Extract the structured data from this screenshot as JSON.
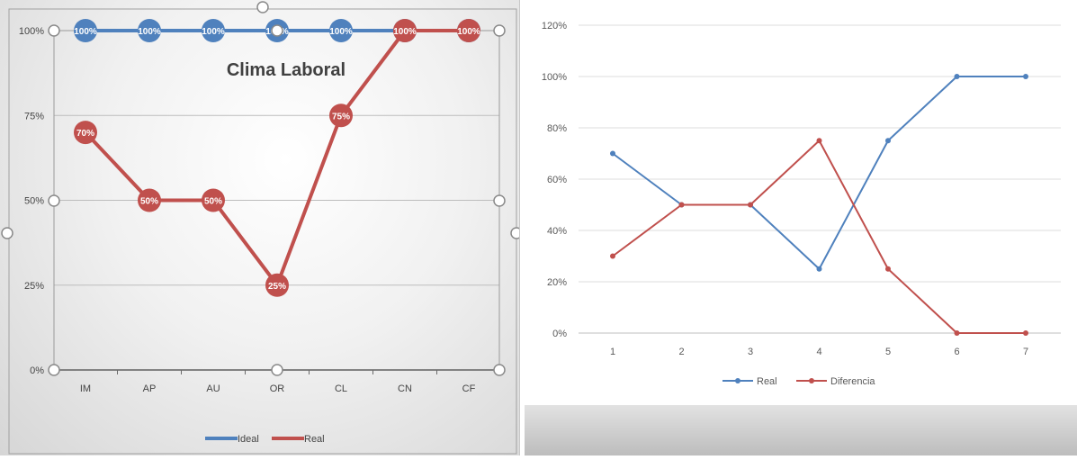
{
  "chart_data": [
    {
      "type": "line",
      "title": "Clima Laboral",
      "categories": [
        "IM",
        "AP",
        "AU",
        "OR",
        "CL",
        "CN",
        "CF"
      ],
      "y_ticks": [
        "0%",
        "25%",
        "50%",
        "75%",
        "100%"
      ],
      "ylim": [
        0,
        100
      ],
      "grid": true,
      "legend": "bottom",
      "series": [
        {
          "name": "Ideal",
          "color": "#4f81bd",
          "values": [
            100,
            100,
            100,
            100,
            100,
            100,
            100
          ],
          "labels": [
            "100%",
            "100%",
            "100%",
            "100%",
            "100%",
            "100%",
            "100%"
          ]
        },
        {
          "name": "Real",
          "color": "#c0504d",
          "values": [
            70,
            50,
            50,
            25,
            75,
            100,
            100
          ],
          "labels": [
            "70%",
            "50%",
            "50%",
            "25%",
            "75%",
            "100%",
            "100%"
          ]
        }
      ]
    },
    {
      "type": "line",
      "title": "",
      "categories": [
        "1",
        "2",
        "3",
        "4",
        "5",
        "6",
        "7"
      ],
      "y_ticks": [
        "0%",
        "20%",
        "40%",
        "60%",
        "80%",
        "100%",
        "120%"
      ],
      "ylim": [
        0,
        120
      ],
      "grid": true,
      "legend": "bottom",
      "series": [
        {
          "name": "Real",
          "color": "#4f81bd",
          "values": [
            70,
            50,
            50,
            25,
            75,
            100,
            100
          ]
        },
        {
          "name": "Diferencia",
          "color": "#c0504d",
          "values": [
            30,
            50,
            50,
            75,
            25,
            0,
            0
          ]
        }
      ]
    }
  ]
}
